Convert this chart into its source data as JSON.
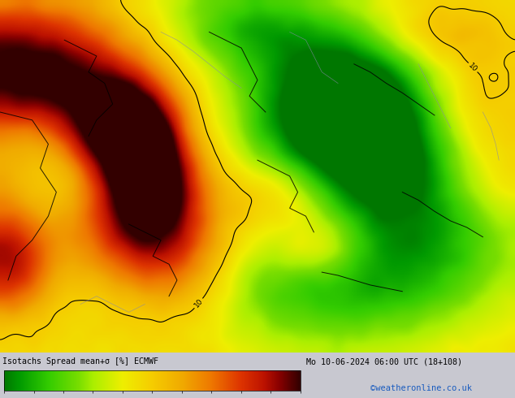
{
  "title_left": "Isotachs Spread mean+σ [%] ECMWF",
  "title_right": "Mo 10-06-2024 06:00 UTC (18+108)",
  "credit": "©weatheronline.co.uk",
  "colorbar_ticks": [
    0,
    2,
    4,
    6,
    8,
    10,
    12,
    14,
    16,
    18,
    20
  ],
  "colorbar_colors": [
    "#007700",
    "#00aa00",
    "#33cc00",
    "#77dd00",
    "#aaee00",
    "#ccee00",
    "#eeee00",
    "#f5cc00",
    "#f0aa00",
    "#ee7700",
    "#dd3300",
    "#bb1100",
    "#880000",
    "#550000",
    "#330000"
  ],
  "bg_color": "#c8c8d0",
  "bottom_bar_color": "#c8c8d0",
  "fig_width": 6.34,
  "fig_height": 4.9,
  "dpi": 100,
  "vmin": 0,
  "vmax": 20
}
